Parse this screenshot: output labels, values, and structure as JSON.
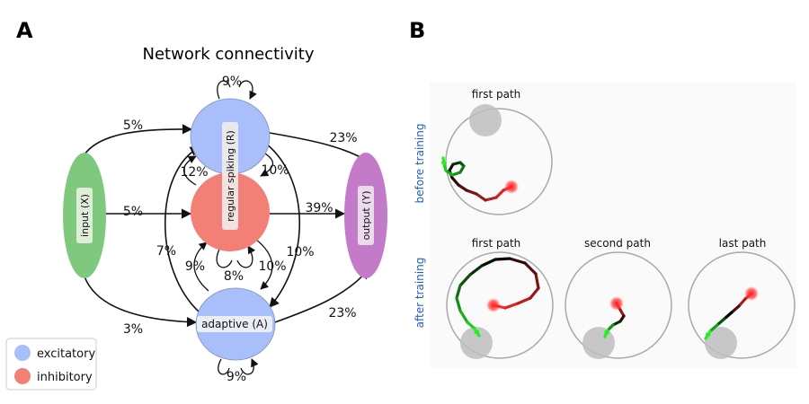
{
  "panel_a": {
    "letter": "A",
    "title": "Network connectivity",
    "nodes": {
      "input": {
        "label": "input (X)",
        "color": "#7fc97f"
      },
      "regular": {
        "label": "regular spiking (R)"
      },
      "output": {
        "label": "output (Y)",
        "color": "#c37bc9"
      },
      "adaptive": {
        "label": "adaptive (A)"
      }
    },
    "colors": {
      "excitatory": "#a8bffc",
      "inhibitory": "#f28077"
    },
    "percentages": {
      "x_to_r_exc": "5%",
      "x_to_r_inh": "5%",
      "x_to_a": "3%",
      "r_self": "9%",
      "r_to_y": "23%",
      "inh_to_y": "39%",
      "a_to_y": "23%",
      "a_self": "9%",
      "r_to_inh": "10%",
      "inh_to_r": "12%",
      "a_to_r": "7%",
      "r_to_a": "10%",
      "inh_to_a": "10%",
      "a_to_inh": "9%",
      "inh_self": "8%"
    },
    "legend": {
      "excitatory": "excitatory",
      "inhibitory": "inhibitory"
    }
  },
  "panel_b": {
    "letter": "B",
    "before_label": "before training",
    "after_label": "after training",
    "titles": {
      "before_first": "first path",
      "after_first": "first path",
      "after_second": "second path",
      "after_last": "last path"
    },
    "colors": {
      "start": "#ff2a2a",
      "mid": "#000000",
      "end": "#22ee22",
      "goal": "#bdbdbd",
      "arena": "#a8a8a8"
    }
  }
}
